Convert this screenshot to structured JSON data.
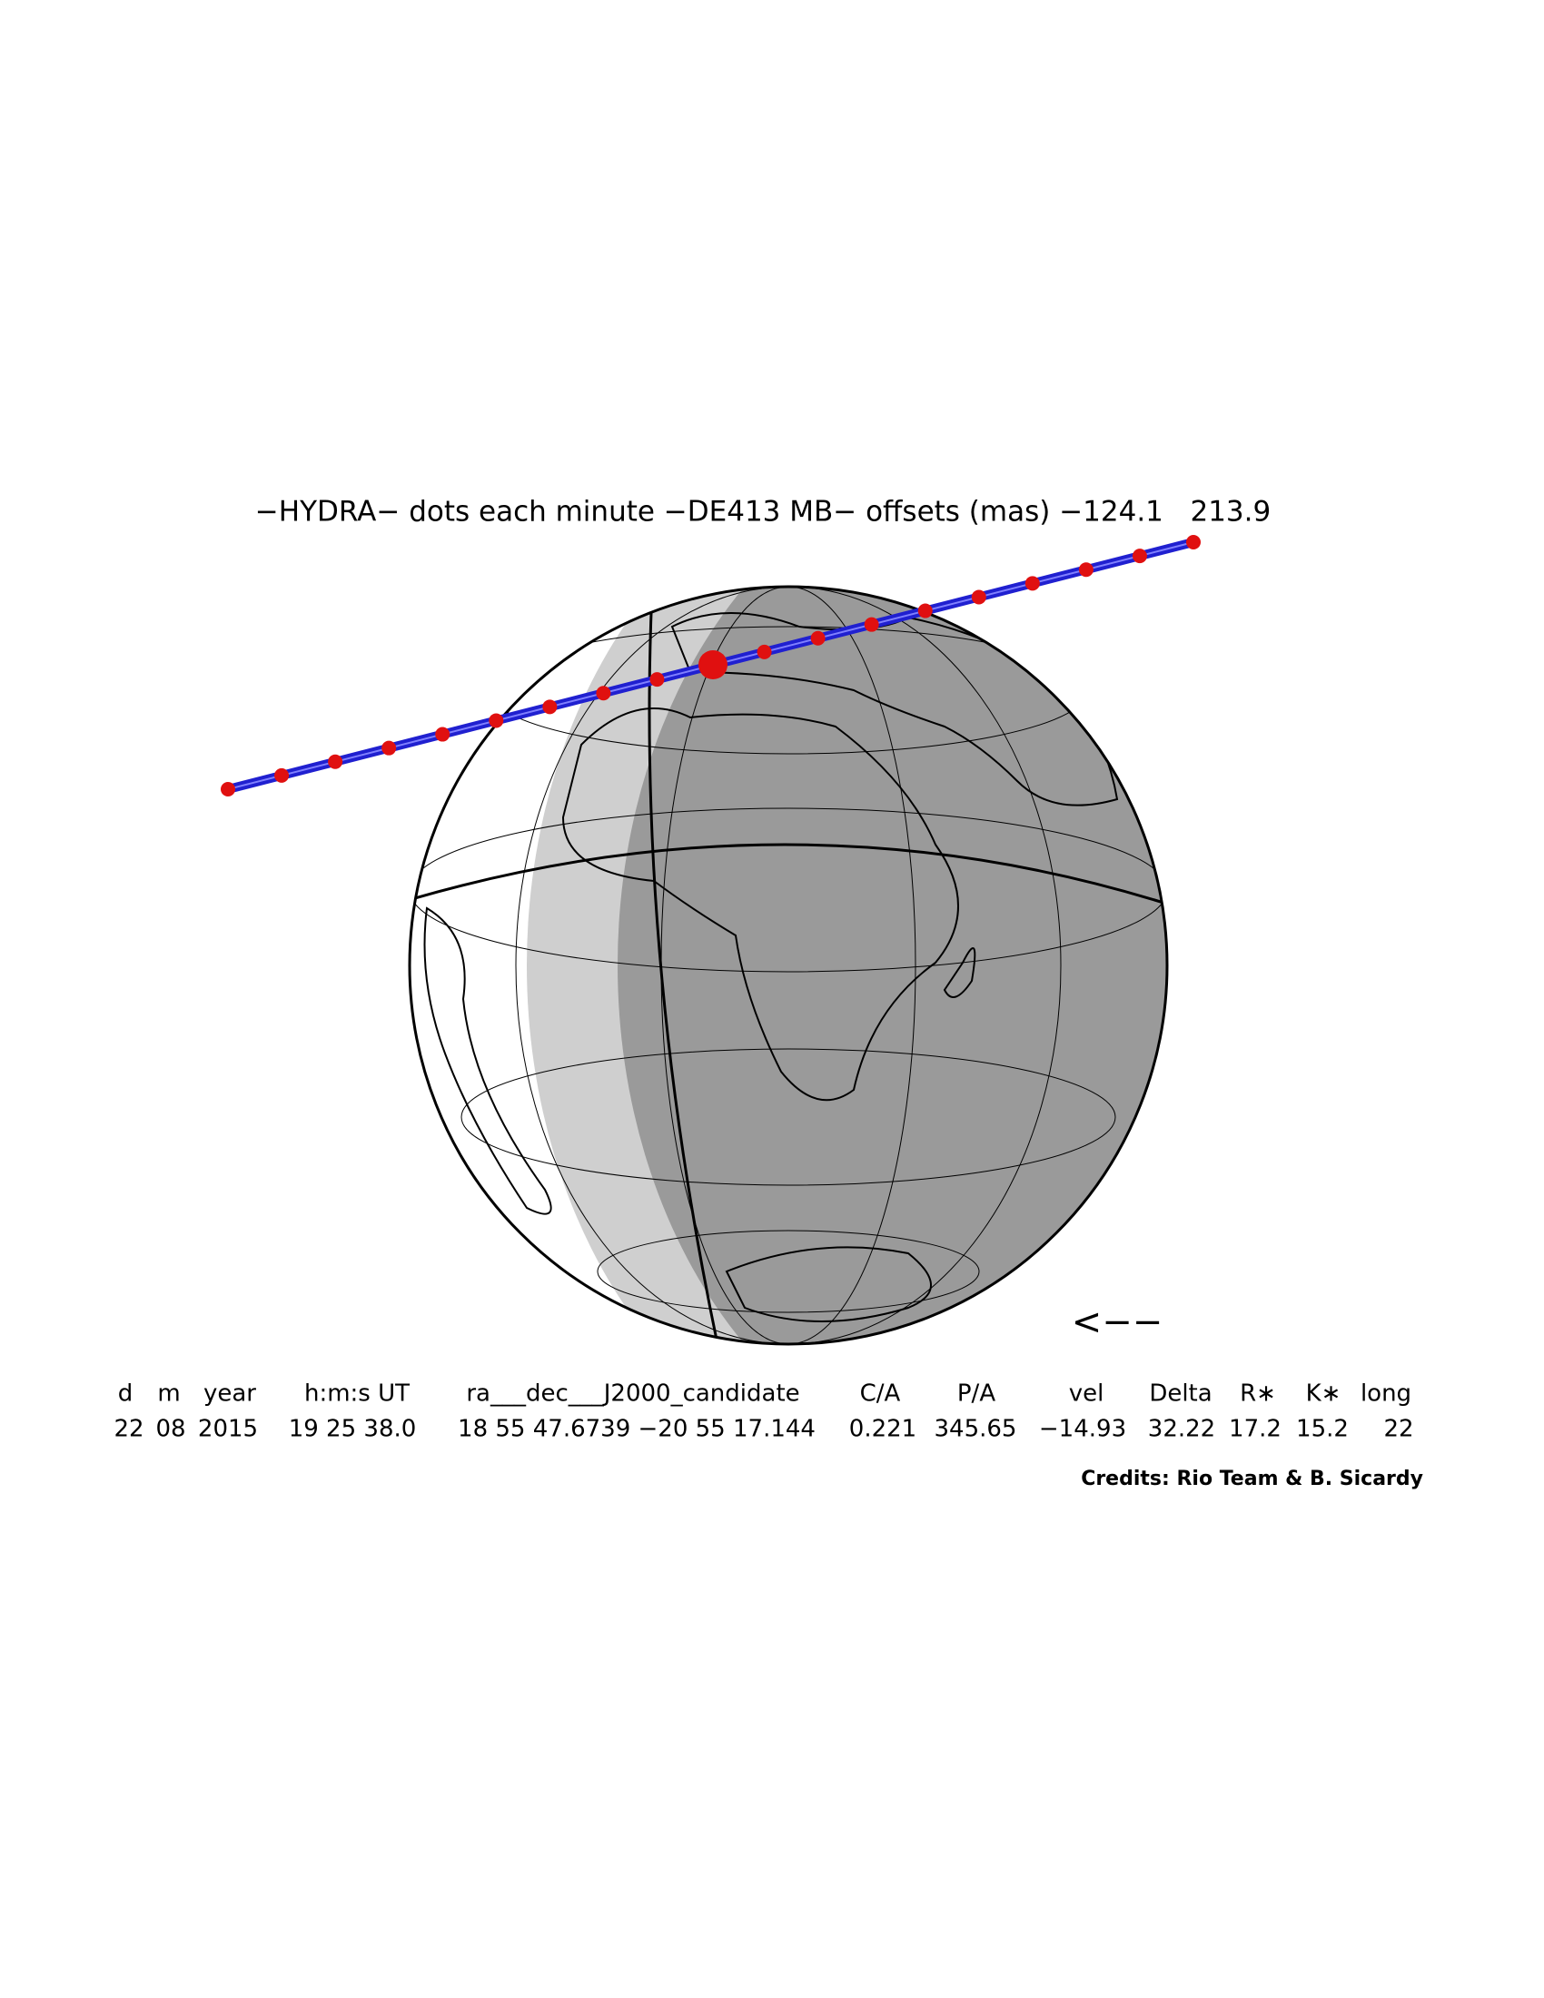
{
  "title": "−HYDRA− dots each minute −DE413 MB− offsets (mas) −124.1   213.9",
  "direction_arrow": "<−−",
  "table": {
    "headers": [
      "d",
      "m",
      "year",
      "h:m:s UT",
      "ra___dec___J2000_candidate",
      "C/A",
      "P/A",
      "vel",
      "Delta",
      "R∗",
      "K∗",
      "long"
    ],
    "rows": [
      [
        "22",
        "08",
        "2015",
        "19 25 38.0",
        "18 55 47.6739 −20 55 17.144",
        "0.221",
        "345.65",
        "−14.93",
        "32.22",
        "17.2",
        "15.2",
        "22"
      ]
    ]
  },
  "credits": "Credits: Rio Team & B. Sicardy"
}
